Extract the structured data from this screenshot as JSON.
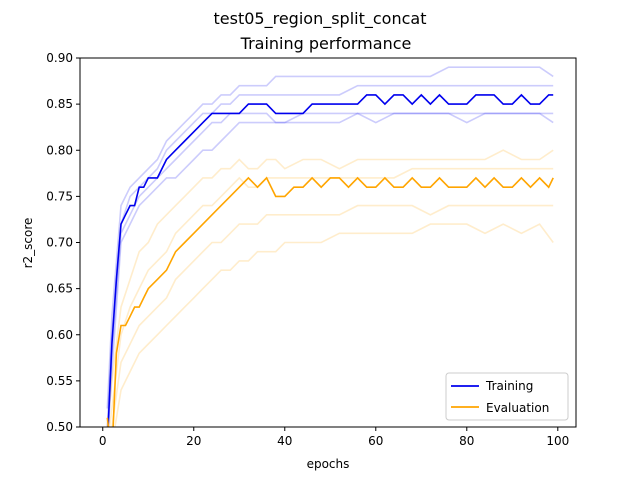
{
  "chart_data": {
    "type": "line",
    "suptitle": "test05_region_split_concat",
    "title": "Training performance",
    "xlabel": "epochs",
    "ylabel": "r2_score",
    "xlim": [
      -5,
      104
    ],
    "ylim": [
      0.5,
      0.9
    ],
    "xticks": [
      0,
      20,
      40,
      60,
      80,
      100
    ],
    "yticks": [
      0.5,
      0.55,
      0.6,
      0.65,
      0.7,
      0.75,
      0.8,
      0.85,
      0.9
    ],
    "xtick_labels": [
      "0",
      "20",
      "40",
      "60",
      "80",
      "100"
    ],
    "ytick_labels": [
      "0.50",
      "0.55",
      "0.60",
      "0.65",
      "0.70",
      "0.75",
      "0.80",
      "0.85",
      "0.90"
    ],
    "grid": false,
    "legend_position": "lower-right",
    "colors": {
      "training": "#0000ee",
      "evaluation": "#ffa500"
    },
    "series": [
      {
        "name": "Training",
        "color": "#0000ee",
        "x": [
          1,
          2,
          3,
          4,
          5,
          6,
          7,
          8,
          9,
          10,
          12,
          14,
          16,
          18,
          20,
          22,
          24,
          26,
          28,
          30,
          32,
          34,
          36,
          38,
          40,
          42,
          44,
          46,
          48,
          50,
          52,
          54,
          56,
          58,
          60,
          62,
          64,
          66,
          68,
          70,
          72,
          74,
          76,
          78,
          80,
          82,
          84,
          86,
          88,
          90,
          92,
          94,
          96,
          98,
          99
        ],
        "values": [
          0.48,
          0.59,
          0.66,
          0.72,
          0.73,
          0.74,
          0.74,
          0.76,
          0.76,
          0.77,
          0.77,
          0.79,
          0.8,
          0.81,
          0.82,
          0.83,
          0.84,
          0.84,
          0.84,
          0.84,
          0.85,
          0.85,
          0.85,
          0.84,
          0.84,
          0.84,
          0.84,
          0.85,
          0.85,
          0.85,
          0.85,
          0.85,
          0.85,
          0.86,
          0.86,
          0.85,
          0.86,
          0.86,
          0.85,
          0.86,
          0.85,
          0.86,
          0.85,
          0.85,
          0.85,
          0.86,
          0.86,
          0.86,
          0.85,
          0.85,
          0.86,
          0.85,
          0.85,
          0.86,
          0.86
        ]
      },
      {
        "name": "Evaluation",
        "color": "#ffa500",
        "x": [
          1,
          2,
          3,
          4,
          5,
          6,
          7,
          8,
          9,
          10,
          12,
          14,
          16,
          18,
          20,
          22,
          24,
          26,
          28,
          30,
          32,
          34,
          36,
          38,
          40,
          42,
          44,
          46,
          48,
          50,
          52,
          54,
          56,
          58,
          60,
          62,
          64,
          66,
          68,
          70,
          72,
          74,
          76,
          78,
          80,
          82,
          84,
          86,
          88,
          90,
          92,
          94,
          96,
          98,
          99
        ],
        "values": [
          0.51,
          0.47,
          0.58,
          0.61,
          0.61,
          0.62,
          0.63,
          0.63,
          0.64,
          0.65,
          0.66,
          0.67,
          0.69,
          0.7,
          0.71,
          0.72,
          0.73,
          0.74,
          0.75,
          0.76,
          0.77,
          0.76,
          0.77,
          0.75,
          0.75,
          0.76,
          0.76,
          0.77,
          0.76,
          0.77,
          0.77,
          0.76,
          0.77,
          0.76,
          0.76,
          0.77,
          0.76,
          0.76,
          0.77,
          0.76,
          0.76,
          0.77,
          0.76,
          0.76,
          0.76,
          0.77,
          0.76,
          0.77,
          0.76,
          0.76,
          0.77,
          0.76,
          0.77,
          0.76,
          0.77
        ]
      }
    ],
    "background_series": [
      {
        "series": "Training",
        "color": "#0000ee",
        "x": [
          1,
          2,
          4,
          6,
          8,
          10,
          12,
          14,
          16,
          18,
          20,
          22,
          24,
          26,
          28,
          30,
          32,
          34,
          36,
          38,
          40,
          44,
          48,
          52,
          56,
          60,
          64,
          68,
          72,
          76,
          80,
          84,
          88,
          92,
          96,
          99
        ],
        "values": [
          0.52,
          0.62,
          0.74,
          0.76,
          0.77,
          0.78,
          0.79,
          0.81,
          0.82,
          0.83,
          0.84,
          0.85,
          0.85,
          0.86,
          0.86,
          0.87,
          0.87,
          0.87,
          0.87,
          0.88,
          0.88,
          0.88,
          0.88,
          0.88,
          0.88,
          0.88,
          0.88,
          0.88,
          0.88,
          0.89,
          0.89,
          0.89,
          0.89,
          0.89,
          0.89,
          0.88
        ]
      },
      {
        "series": "Training",
        "color": "#0000ee",
        "x": [
          1,
          2,
          4,
          6,
          8,
          10,
          12,
          14,
          16,
          18,
          20,
          22,
          24,
          26,
          28,
          30,
          32,
          34,
          36,
          38,
          40,
          44,
          48,
          52,
          56,
          60,
          64,
          68,
          72,
          76,
          80,
          84,
          88,
          92,
          96,
          99
        ],
        "values": [
          0.5,
          0.6,
          0.72,
          0.75,
          0.76,
          0.77,
          0.78,
          0.8,
          0.81,
          0.82,
          0.83,
          0.84,
          0.84,
          0.85,
          0.85,
          0.86,
          0.86,
          0.86,
          0.86,
          0.86,
          0.86,
          0.86,
          0.86,
          0.86,
          0.87,
          0.87,
          0.87,
          0.87,
          0.87,
          0.87,
          0.87,
          0.87,
          0.87,
          0.87,
          0.87,
          0.87
        ]
      },
      {
        "series": "Training",
        "color": "#0000ee",
        "x": [
          1,
          2,
          4,
          6,
          8,
          10,
          12,
          14,
          16,
          18,
          20,
          22,
          24,
          26,
          28,
          30,
          32,
          34,
          36,
          38,
          40,
          44,
          48,
          52,
          56,
          60,
          64,
          68,
          72,
          76,
          80,
          84,
          88,
          92,
          96,
          99
        ],
        "values": [
          0.49,
          0.58,
          0.71,
          0.73,
          0.75,
          0.76,
          0.77,
          0.78,
          0.79,
          0.8,
          0.81,
          0.82,
          0.83,
          0.83,
          0.84,
          0.84,
          0.84,
          0.84,
          0.84,
          0.83,
          0.83,
          0.84,
          0.84,
          0.84,
          0.84,
          0.84,
          0.84,
          0.84,
          0.84,
          0.84,
          0.84,
          0.84,
          0.84,
          0.84,
          0.84,
          0.84
        ]
      },
      {
        "series": "Training",
        "color": "#0000ee",
        "x": [
          1,
          2,
          4,
          6,
          8,
          10,
          12,
          14,
          16,
          18,
          20,
          22,
          24,
          26,
          28,
          30,
          32,
          34,
          36,
          38,
          40,
          44,
          48,
          52,
          56,
          60,
          64,
          68,
          72,
          76,
          80,
          84,
          88,
          92,
          96,
          99
        ],
        "values": [
          0.48,
          0.56,
          0.7,
          0.72,
          0.74,
          0.75,
          0.76,
          0.77,
          0.77,
          0.78,
          0.79,
          0.8,
          0.8,
          0.81,
          0.82,
          0.83,
          0.83,
          0.83,
          0.83,
          0.83,
          0.83,
          0.83,
          0.83,
          0.83,
          0.84,
          0.83,
          0.84,
          0.84,
          0.84,
          0.84,
          0.83,
          0.84,
          0.84,
          0.84,
          0.84,
          0.83
        ]
      },
      {
        "series": "Evaluation",
        "color": "#ffa500",
        "x": [
          1,
          2,
          4,
          6,
          8,
          10,
          12,
          14,
          16,
          18,
          20,
          22,
          24,
          26,
          28,
          30,
          32,
          34,
          36,
          38,
          40,
          44,
          48,
          52,
          56,
          60,
          64,
          68,
          72,
          76,
          80,
          84,
          88,
          92,
          96,
          99
        ],
        "values": [
          0.5,
          0.55,
          0.63,
          0.66,
          0.69,
          0.7,
          0.72,
          0.73,
          0.74,
          0.75,
          0.76,
          0.77,
          0.77,
          0.78,
          0.78,
          0.79,
          0.78,
          0.78,
          0.79,
          0.79,
          0.78,
          0.79,
          0.79,
          0.78,
          0.79,
          0.79,
          0.79,
          0.79,
          0.79,
          0.79,
          0.79,
          0.79,
          0.8,
          0.79,
          0.79,
          0.8
        ]
      },
      {
        "series": "Evaluation",
        "color": "#ffa500",
        "x": [
          1,
          2,
          4,
          6,
          8,
          10,
          12,
          14,
          16,
          18,
          20,
          22,
          24,
          26,
          28,
          30,
          32,
          34,
          36,
          38,
          40,
          44,
          48,
          52,
          56,
          60,
          64,
          68,
          72,
          76,
          80,
          84,
          88,
          92,
          96,
          99
        ],
        "values": [
          0.48,
          0.52,
          0.6,
          0.63,
          0.65,
          0.67,
          0.68,
          0.69,
          0.71,
          0.72,
          0.73,
          0.74,
          0.74,
          0.75,
          0.76,
          0.77,
          0.76,
          0.76,
          0.77,
          0.77,
          0.77,
          0.77,
          0.77,
          0.77,
          0.77,
          0.77,
          0.77,
          0.78,
          0.78,
          0.78,
          0.78,
          0.78,
          0.78,
          0.78,
          0.78,
          0.78
        ]
      },
      {
        "series": "Evaluation",
        "color": "#ffa500",
        "x": [
          1,
          2,
          4,
          6,
          8,
          10,
          12,
          14,
          16,
          18,
          20,
          22,
          24,
          26,
          28,
          30,
          32,
          34,
          36,
          38,
          40,
          44,
          48,
          52,
          56,
          60,
          64,
          68,
          72,
          76,
          80,
          84,
          88,
          92,
          96,
          99
        ],
        "values": [
          0.46,
          0.5,
          0.57,
          0.59,
          0.61,
          0.62,
          0.63,
          0.64,
          0.66,
          0.67,
          0.68,
          0.69,
          0.7,
          0.7,
          0.71,
          0.72,
          0.72,
          0.72,
          0.73,
          0.73,
          0.73,
          0.73,
          0.73,
          0.73,
          0.74,
          0.74,
          0.74,
          0.74,
          0.73,
          0.74,
          0.74,
          0.74,
          0.74,
          0.74,
          0.74,
          0.74
        ]
      },
      {
        "series": "Evaluation",
        "color": "#ffa500",
        "x": [
          1,
          2,
          4,
          6,
          8,
          10,
          12,
          14,
          16,
          18,
          20,
          22,
          24,
          26,
          28,
          30,
          32,
          34,
          36,
          38,
          40,
          44,
          48,
          52,
          56,
          60,
          64,
          68,
          72,
          76,
          80,
          84,
          88,
          92,
          96,
          99
        ],
        "values": [
          0.44,
          0.48,
          0.54,
          0.56,
          0.58,
          0.59,
          0.6,
          0.61,
          0.62,
          0.63,
          0.64,
          0.65,
          0.66,
          0.67,
          0.67,
          0.68,
          0.68,
          0.69,
          0.69,
          0.69,
          0.7,
          0.7,
          0.7,
          0.71,
          0.71,
          0.71,
          0.71,
          0.71,
          0.72,
          0.72,
          0.72,
          0.71,
          0.72,
          0.71,
          0.72,
          0.7
        ]
      }
    ]
  }
}
